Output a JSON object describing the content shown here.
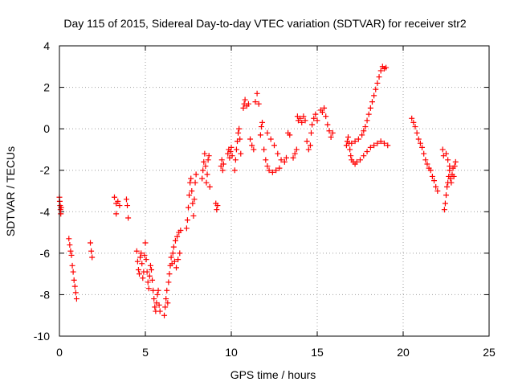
{
  "chart_data": {
    "type": "scatter",
    "title": "Day 115 of 2015, Sidereal Day-to-day VTEC variation (SDTVAR) for receiver str2",
    "xlabel": "GPS time / hours",
    "ylabel": "SDTVAR / TECUs",
    "xlim": [
      0,
      25
    ],
    "ylim": [
      -10,
      4
    ],
    "xticks": [
      "0",
      "5",
      "10",
      "15",
      "20",
      "25"
    ],
    "yticks": [
      "-10",
      "-8",
      "-6",
      "-4",
      "-2",
      "0",
      "2",
      "4"
    ],
    "grid": true,
    "marker": "plus",
    "color": "#ff0000",
    "series": [
      {
        "points": [
          [
            0.0,
            -3.3
          ],
          [
            0.02,
            -3.5
          ],
          [
            0.04,
            -3.7
          ],
          [
            0.06,
            -3.9
          ],
          [
            0.08,
            -4.1
          ],
          [
            0.1,
            -3.8
          ],
          [
            0.55,
            -5.3
          ],
          [
            0.6,
            -5.6
          ],
          [
            0.65,
            -5.9
          ],
          [
            0.7,
            -6.1
          ],
          [
            0.75,
            -6.6
          ],
          [
            0.8,
            -6.9
          ],
          [
            0.85,
            -7.3
          ],
          [
            0.9,
            -7.6
          ],
          [
            0.95,
            -7.9
          ],
          [
            1.0,
            -8.2
          ],
          [
            1.8,
            -5.5
          ],
          [
            1.85,
            -5.9
          ],
          [
            1.9,
            -6.2
          ],
          [
            3.2,
            -3.3
          ],
          [
            3.3,
            -3.6
          ],
          [
            3.4,
            -3.5
          ],
          [
            3.5,
            -3.7
          ],
          [
            3.3,
            -4.1
          ],
          [
            3.9,
            -3.4
          ],
          [
            3.95,
            -3.7
          ],
          [
            4.0,
            -4.3
          ],
          [
            4.5,
            -5.9
          ],
          [
            4.55,
            -6.4
          ],
          [
            4.6,
            -6.8
          ],
          [
            4.65,
            -7.0
          ],
          [
            4.7,
            -6.2
          ],
          [
            4.75,
            -6.0
          ],
          [
            4.8,
            -6.5
          ],
          [
            4.85,
            -7.2
          ],
          [
            4.9,
            -6.9
          ],
          [
            4.95,
            -6.1
          ],
          [
            5.0,
            -5.5
          ],
          [
            5.05,
            -6.3
          ],
          [
            5.1,
            -6.9
          ],
          [
            5.15,
            -7.4
          ],
          [
            5.2,
            -7.7
          ],
          [
            5.25,
            -7.1
          ],
          [
            5.3,
            -6.6
          ],
          [
            5.35,
            -6.8
          ],
          [
            5.4,
            -7.3
          ],
          [
            5.45,
            -7.8
          ],
          [
            5.5,
            -8.2
          ],
          [
            5.55,
            -8.6
          ],
          [
            5.6,
            -8.8
          ],
          [
            5.65,
            -8.4
          ],
          [
            5.7,
            -8.0
          ],
          [
            5.75,
            -7.8
          ],
          [
            5.8,
            -8.5
          ],
          [
            5.85,
            -8.8
          ],
          [
            6.1,
            -9.0
          ],
          [
            6.15,
            -8.6
          ],
          [
            6.2,
            -8.2
          ],
          [
            6.25,
            -7.8
          ],
          [
            6.3,
            -8.4
          ],
          [
            6.35,
            -7.4
          ],
          [
            6.4,
            -7.0
          ],
          [
            6.45,
            -6.6
          ],
          [
            6.5,
            -6.2
          ],
          [
            6.55,
            -6.5
          ],
          [
            6.6,
            -6.0
          ],
          [
            6.65,
            -5.7
          ],
          [
            6.7,
            -6.4
          ],
          [
            6.75,
            -5.4
          ],
          [
            6.8,
            -6.7
          ],
          [
            6.85,
            -5.2
          ],
          [
            6.9,
            -6.3
          ],
          [
            6.95,
            -5.0
          ],
          [
            7.0,
            -6.0
          ],
          [
            7.05,
            -4.9
          ],
          [
            7.4,
            -4.8
          ],
          [
            7.45,
            -4.4
          ],
          [
            7.5,
            -3.8
          ],
          [
            7.55,
            -3.2
          ],
          [
            7.6,
            -2.6
          ],
          [
            7.65,
            -2.4
          ],
          [
            7.7,
            -3.0
          ],
          [
            7.75,
            -3.6
          ],
          [
            7.8,
            -4.2
          ],
          [
            7.85,
            -3.4
          ],
          [
            7.9,
            -2.6
          ],
          [
            7.95,
            -2.2
          ],
          [
            8.3,
            -2.4
          ],
          [
            8.35,
            -2.0
          ],
          [
            8.4,
            -1.6
          ],
          [
            8.45,
            -1.2
          ],
          [
            8.5,
            -1.8
          ],
          [
            8.55,
            -2.6
          ],
          [
            8.6,
            -2.2
          ],
          [
            8.65,
            -1.5
          ],
          [
            8.7,
            -1.3
          ],
          [
            8.75,
            -2.8
          ],
          [
            9.1,
            -3.6
          ],
          [
            9.15,
            -3.9
          ],
          [
            9.2,
            -3.7
          ],
          [
            9.4,
            -1.8
          ],
          [
            9.45,
            -1.5
          ],
          [
            9.5,
            -2.0
          ],
          [
            9.55,
            -1.7
          ],
          [
            9.8,
            -1.2
          ],
          [
            9.85,
            -1.0
          ],
          [
            9.9,
            -1.4
          ],
          [
            9.95,
            -1.1
          ],
          [
            10.0,
            -0.9
          ],
          [
            10.05,
            -1.3
          ],
          [
            10.2,
            -2.0
          ],
          [
            10.25,
            -1.5
          ],
          [
            10.3,
            -1.0
          ],
          [
            10.35,
            -0.6
          ],
          [
            10.4,
            -0.2
          ],
          [
            10.45,
            0.0
          ],
          [
            10.5,
            -0.5
          ],
          [
            10.55,
            -1.2
          ],
          [
            10.7,
            1.0
          ],
          [
            10.75,
            1.2
          ],
          [
            10.8,
            1.4
          ],
          [
            10.9,
            1.1
          ],
          [
            11.0,
            1.2
          ],
          [
            11.1,
            -0.5
          ],
          [
            11.2,
            -0.8
          ],
          [
            11.3,
            -1.0
          ],
          [
            11.4,
            1.3
          ],
          [
            11.5,
            1.7
          ],
          [
            11.6,
            1.2
          ],
          [
            11.7,
            -0.3
          ],
          [
            11.75,
            0.1
          ],
          [
            11.8,
            0.3
          ],
          [
            11.9,
            -1.0
          ],
          [
            12.0,
            -1.5
          ],
          [
            12.1,
            -1.8
          ],
          [
            12.2,
            -2.0
          ],
          [
            12.4,
            -2.1
          ],
          [
            12.6,
            -2.0
          ],
          [
            12.8,
            -1.9
          ],
          [
            12.1,
            -0.2
          ],
          [
            12.3,
            -0.5
          ],
          [
            12.5,
            -0.8
          ],
          [
            12.7,
            -1.2
          ],
          [
            12.9,
            -1.5
          ],
          [
            13.1,
            -1.6
          ],
          [
            13.2,
            -1.4
          ],
          [
            13.3,
            -0.2
          ],
          [
            13.4,
            -0.3
          ],
          [
            13.6,
            -1.4
          ],
          [
            13.7,
            -1.2
          ],
          [
            13.8,
            -1.0
          ],
          [
            13.85,
            0.6
          ],
          [
            13.9,
            0.4
          ],
          [
            14.0,
            0.5
          ],
          [
            14.1,
            0.3
          ],
          [
            14.2,
            0.6
          ],
          [
            14.3,
            0.4
          ],
          [
            14.4,
            -0.6
          ],
          [
            14.5,
            -1.0
          ],
          [
            14.6,
            -0.8
          ],
          [
            14.65,
            -0.2
          ],
          [
            14.7,
            0.2
          ],
          [
            14.8,
            0.5
          ],
          [
            14.9,
            0.7
          ],
          [
            15.0,
            0.4
          ],
          [
            15.2,
            0.9
          ],
          [
            15.3,
            0.8
          ],
          [
            15.4,
            1.0
          ],
          [
            15.5,
            0.6
          ],
          [
            15.6,
            0.2
          ],
          [
            15.7,
            -0.1
          ],
          [
            15.8,
            -0.4
          ],
          [
            15.9,
            -0.2
          ],
          [
            16.7,
            -0.8
          ],
          [
            16.75,
            -0.6
          ],
          [
            16.8,
            -0.4
          ],
          [
            16.85,
            -0.7
          ],
          [
            16.9,
            -1.0
          ],
          [
            16.95,
            -1.3
          ],
          [
            17.0,
            -1.5
          ],
          [
            17.1,
            -1.6
          ],
          [
            17.2,
            -1.7
          ],
          [
            17.3,
            -1.6
          ],
          [
            17.5,
            -1.5
          ],
          [
            17.7,
            -1.3
          ],
          [
            17.9,
            -1.1
          ],
          [
            18.1,
            -0.9
          ],
          [
            18.3,
            -0.8
          ],
          [
            18.5,
            -0.7
          ],
          [
            18.7,
            -0.6
          ],
          [
            18.9,
            -0.7
          ],
          [
            19.1,
            -0.8
          ],
          [
            17.0,
            -0.7
          ],
          [
            17.2,
            -0.6
          ],
          [
            17.4,
            -0.5
          ],
          [
            17.6,
            -0.3
          ],
          [
            17.7,
            -0.1
          ],
          [
            17.8,
            0.1
          ],
          [
            17.9,
            0.4
          ],
          [
            18.0,
            0.7
          ],
          [
            18.1,
            1.0
          ],
          [
            18.2,
            1.3
          ],
          [
            18.3,
            1.6
          ],
          [
            18.4,
            1.9
          ],
          [
            18.5,
            2.2
          ],
          [
            18.6,
            2.5
          ],
          [
            18.7,
            2.8
          ],
          [
            18.8,
            3.0
          ],
          [
            18.9,
            2.9
          ],
          [
            19.0,
            2.95
          ],
          [
            20.5,
            0.5
          ],
          [
            20.6,
            0.3
          ],
          [
            20.7,
            0.1
          ],
          [
            20.8,
            -0.2
          ],
          [
            20.9,
            -0.5
          ],
          [
            21.0,
            -0.7
          ],
          [
            21.1,
            -0.9
          ],
          [
            21.2,
            -1.2
          ],
          [
            21.3,
            -1.5
          ],
          [
            21.4,
            -1.7
          ],
          [
            21.5,
            -1.9
          ],
          [
            21.6,
            -2.0
          ],
          [
            21.7,
            -2.3
          ],
          [
            21.8,
            -2.5
          ],
          [
            21.9,
            -2.8
          ],
          [
            22.0,
            -3.0
          ],
          [
            22.3,
            -1.0
          ],
          [
            22.35,
            -1.3
          ],
          [
            22.4,
            -3.9
          ],
          [
            22.45,
            -3.6
          ],
          [
            22.5,
            -3.2
          ],
          [
            22.55,
            -2.8
          ],
          [
            22.6,
            -2.6
          ],
          [
            22.65,
            -2.3
          ],
          [
            22.7,
            -2.0
          ],
          [
            22.75,
            -2.4
          ],
          [
            22.8,
            -2.6
          ],
          [
            22.85,
            -2.2
          ],
          [
            22.9,
            -1.9
          ],
          [
            22.95,
            -2.3
          ],
          [
            23.0,
            -1.8
          ],
          [
            23.05,
            -1.6
          ],
          [
            22.5,
            -1.2
          ],
          [
            22.6,
            -1.5
          ],
          [
            22.7,
            -1.8
          ]
        ]
      }
    ]
  }
}
